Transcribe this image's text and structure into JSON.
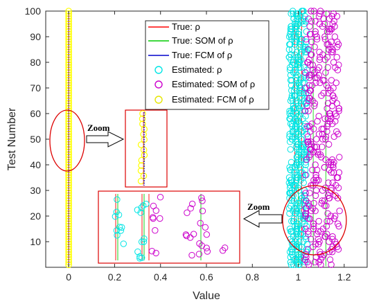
{
  "chart_data": {
    "type": "scatter",
    "xlabel": "Value",
    "ylabel": "Test Number",
    "xlim": [
      -0.1,
      1.3
    ],
    "ylim": [
      0,
      100
    ],
    "xticks": [
      "0",
      "0.2",
      "0.4",
      "0.6",
      "0.8",
      "1",
      "1.2"
    ],
    "yticks": [
      "10",
      "20",
      "30",
      "40",
      "50",
      "60",
      "70",
      "80",
      "90",
      "100"
    ],
    "legend_position": "top-center",
    "grid": false,
    "series": [
      {
        "name": "True: ρ",
        "kind": "line",
        "color": "#ff0000",
        "x": 0.0
      },
      {
        "name": "True: SOM of ρ",
        "kind": "line",
        "color": "#00cc00",
        "x": 0.0
      },
      {
        "name": "True: FCM of ρ",
        "kind": "line",
        "color": "#0000cc",
        "x": 0.0
      },
      {
        "name": "Estimated: ρ",
        "kind": "markers",
        "color": "#00e5e5",
        "x_range": [
          0.96,
          1.04
        ]
      },
      {
        "name": "Estimated: SOM of ρ",
        "kind": "markers",
        "color": "#cc00cc",
        "x_range": [
          1.03,
          1.18
        ]
      },
      {
        "name": "Estimated: FCM of ρ",
        "kind": "markers",
        "color": "#ffff00",
        "x": 0.0
      }
    ],
    "annotations": [
      "Zoom",
      "Zoom"
    ]
  }
}
